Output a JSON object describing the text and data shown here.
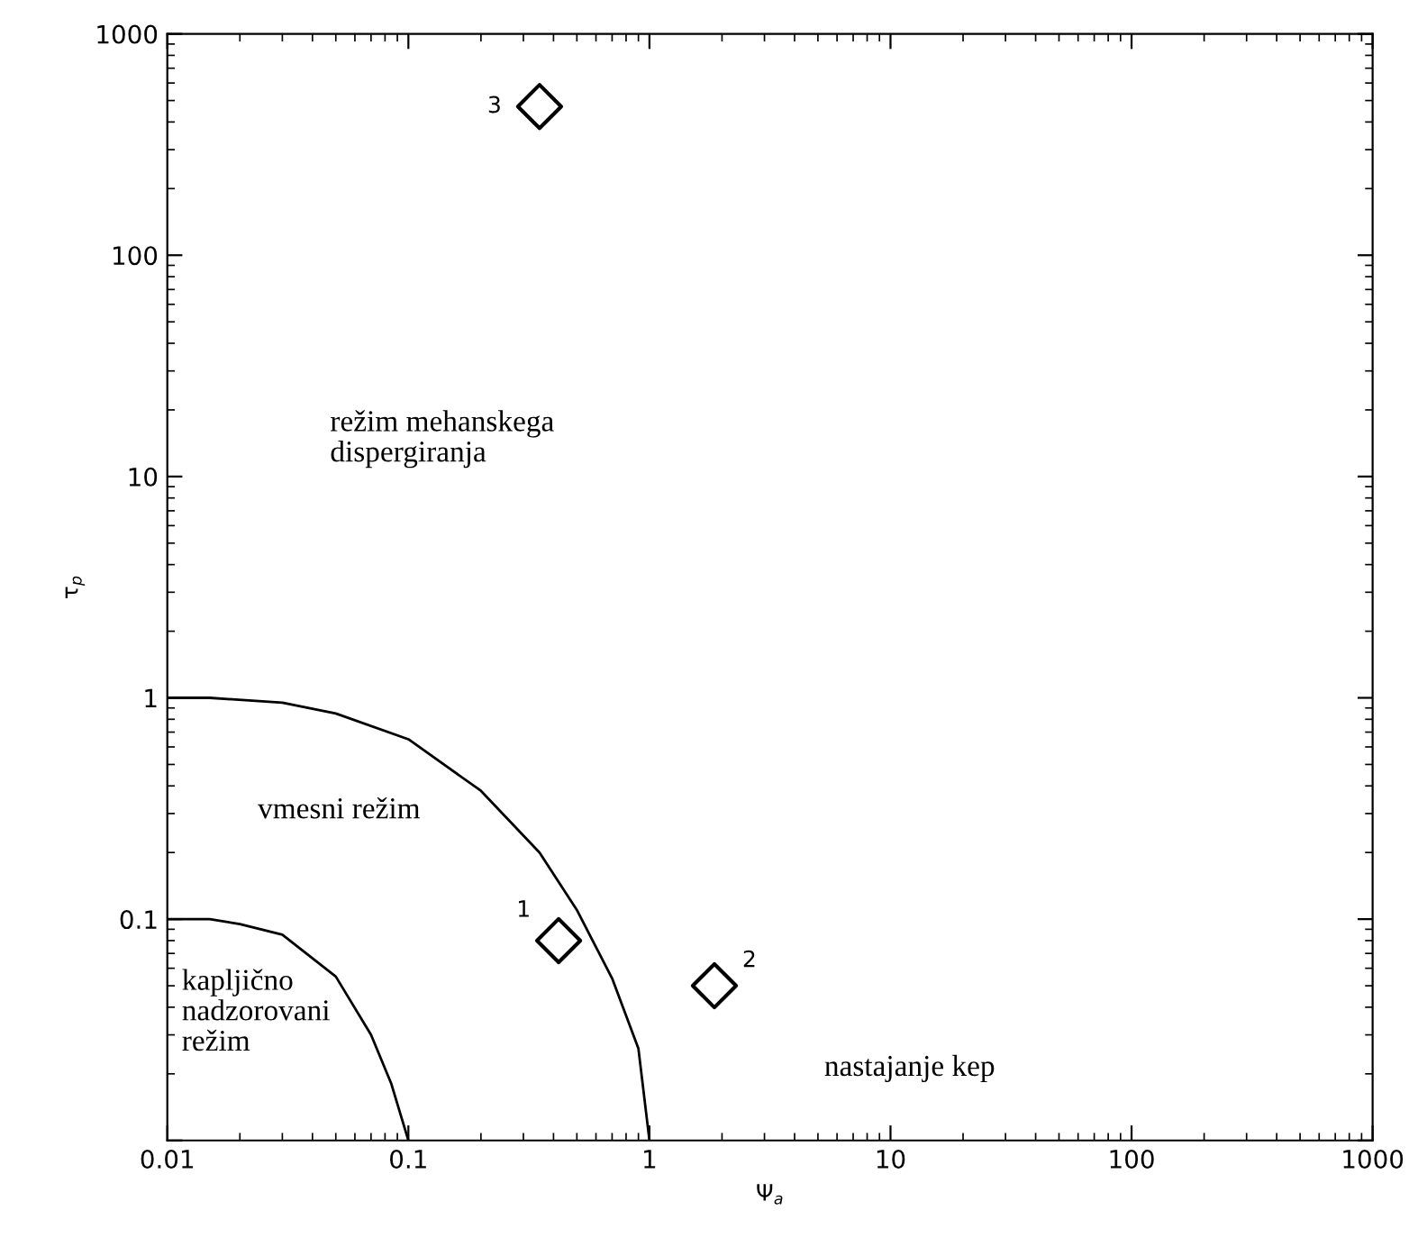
{
  "chart_data": {
    "type": "scatter",
    "xlabel": "Ψ$_{a}$",
    "ylabel": "τ$_{p}$",
    "log": "xy",
    "xlim": [
      0.01,
      1000
    ],
    "ylim": [
      0.01,
      1000
    ],
    "xticks": [
      0.01,
      0.1,
      1,
      10,
      100,
      1000
    ],
    "yticks": [
      {
        "value": 0.01,
        "label": null
      },
      0.1,
      1,
      10,
      100,
      1000
    ],
    "grid": false,
    "marker": "diamond",
    "series": [
      {
        "color": "#000000",
        "x": [
          0.42,
          1.86,
          0.35
        ],
        "values": [
          0.08,
          0.05,
          470
        ]
      },
      {
        "type": "line",
        "color": "#000000",
        "line_style": "solid",
        "marker": "none",
        "x": [
          0.01,
          0.015,
          0.03,
          0.05,
          0.1,
          0.2,
          0.35,
          0.5,
          0.7,
          0.9,
          1
        ],
        "values": [
          1,
          1,
          0.95,
          0.85,
          0.65,
          0.38,
          0.2,
          0.11,
          0.054,
          0.026,
          0.01
        ]
      },
      {
        "type": "line",
        "color": "#000000",
        "line_style": "solid",
        "marker": "none",
        "x": [
          0.01,
          0.015,
          0.02,
          0.03,
          0.05,
          0.07,
          0.085,
          0.1
        ],
        "values": [
          0.1,
          0.1,
          0.095,
          0.085,
          0.055,
          0.03,
          0.018,
          0.01
        ]
      }
    ],
    "annotations": [
      {
        "text": "1",
        "x": 0.42,
        "y": 0.08
      },
      {
        "text": "2",
        "x": 1.86,
        "y": 0.05
      },
      {
        "text": "3",
        "x": 0.35,
        "y": 470
      },
      "režim mehanskega\ndispergiranja",
      "vmesni režim",
      "kapljično\nnadzorovani\nrežim",
      "nastajanje kep"
    ]
  }
}
